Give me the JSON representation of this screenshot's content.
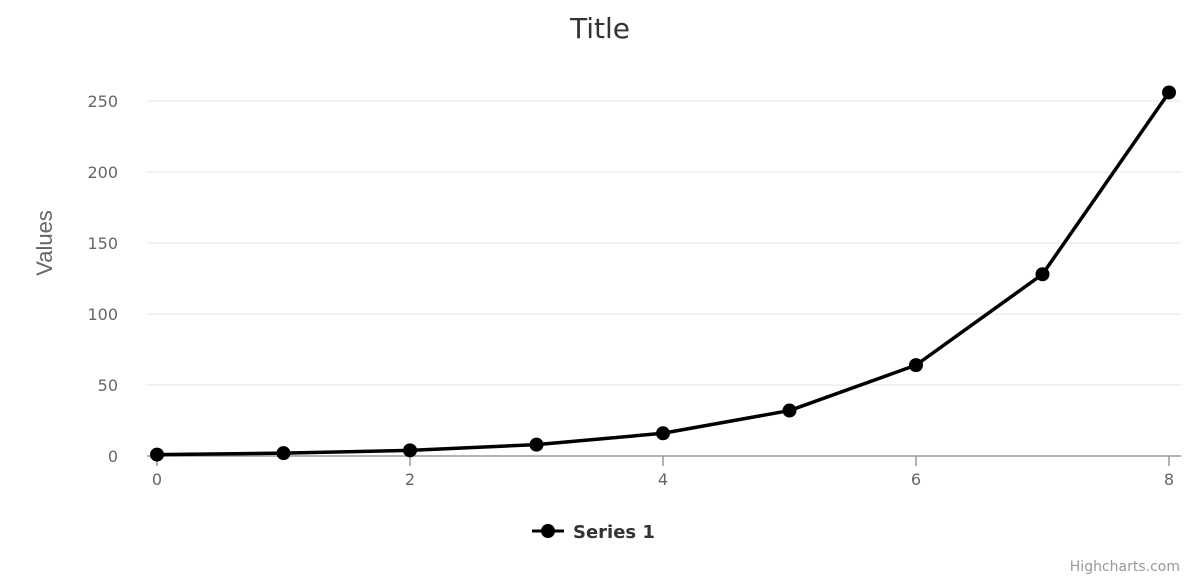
{
  "chart_data": {
    "type": "line",
    "title": "Title",
    "xlabel": "",
    "ylabel": "Values",
    "x_ticks": [
      "0",
      "2",
      "4",
      "6",
      "8"
    ],
    "y_ticks": [
      "0",
      "50",
      "100",
      "150",
      "200",
      "250"
    ],
    "xlim": [
      0,
      8
    ],
    "ylim": [
      0,
      250
    ],
    "grid": true,
    "legend_position": "bottom-center",
    "series": [
      {
        "name": "Series 1",
        "color": "#000000",
        "x": [
          0,
          1,
          2,
          3,
          4,
          5,
          6,
          7,
          8
        ],
        "values": [
          1,
          2,
          4,
          8,
          16,
          32,
          64,
          128,
          256
        ]
      }
    ]
  },
  "credits": "Highcharts.com"
}
